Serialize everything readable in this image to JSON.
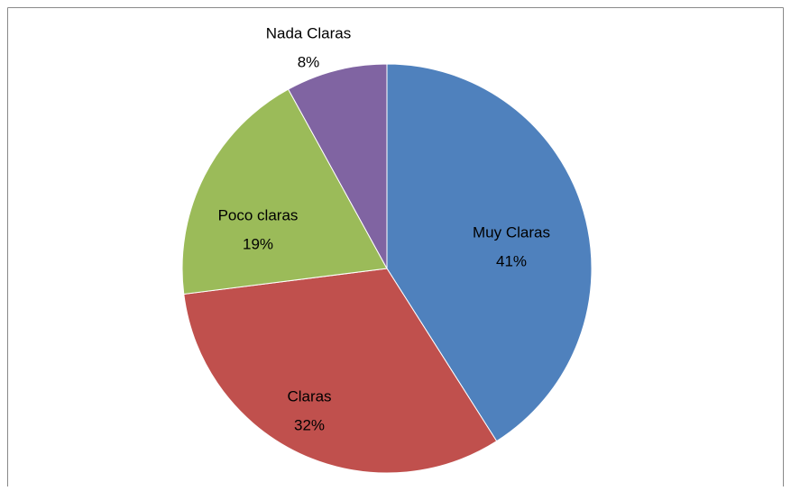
{
  "chart_data": {
    "type": "pie",
    "categories": [
      "Muy Claras",
      "Claras",
      "Poco claras",
      "Nada Claras"
    ],
    "values": [
      41,
      32,
      19,
      8
    ],
    "value_labels": [
      "41%",
      "32%",
      "19%",
      "8%"
    ],
    "colors": [
      "#4f81bd",
      "#c0504d",
      "#9bbb59",
      "#8064a2"
    ]
  }
}
